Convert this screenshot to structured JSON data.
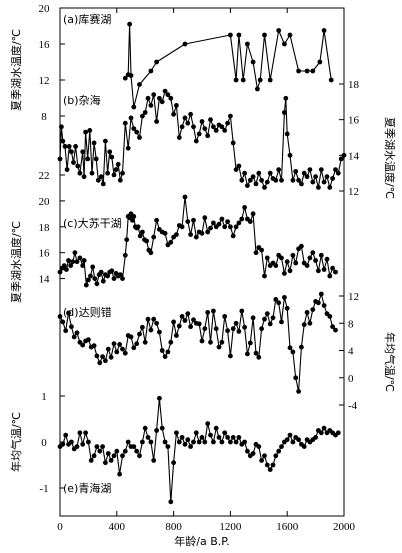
{
  "chart_data": {
    "type": "line",
    "x_axis": {
      "label": "年龄/a B.P.",
      "range": [
        0,
        2000
      ],
      "ticks": [
        0,
        400,
        800,
        1200,
        1600,
        2000
      ]
    },
    "left_axis_labels": [
      "夏季湖水温度/℃",
      "夏季湖水温度/℃",
      "年均气温/℃"
    ],
    "right_axis_labels": [
      "夏季湖水温度/℃",
      "年均气温/℃"
    ],
    "panels": [
      {
        "label": "(a)库赛湖",
        "axis_side": "left",
        "ylim": [
          8,
          20
        ],
        "ticks": [
          8,
          12,
          16,
          20
        ],
        "x": [
          460,
          480,
          490,
          500,
          520,
          560,
          640,
          680,
          880,
          1200,
          1240,
          1260,
          1290,
          1320,
          1360,
          1390,
          1410,
          1440,
          1480,
          1540,
          1580,
          1620,
          1680,
          1740,
          1780,
          1830,
          1860,
          1910
        ],
        "values": [
          12.2,
          12.6,
          18.2,
          12.5,
          9.0,
          11.5,
          13.0,
          14.0,
          16.0,
          17.0,
          12.0,
          17.0,
          12.0,
          16.0,
          14.0,
          11.0,
          12.0,
          17.0,
          12.0,
          17.5,
          16.0,
          17.0,
          13.0,
          13.0,
          13.0,
          14.0,
          17.5,
          12.0
        ]
      },
      {
        "label": "(b)杂海",
        "axis_side": "right",
        "ylim": [
          12,
          18
        ],
        "ticks": [
          12,
          14,
          16,
          18
        ],
        "x": [
          0,
          10,
          20,
          35,
          50,
          65,
          80,
          95,
          110,
          125,
          140,
          160,
          170,
          180,
          195,
          210,
          225,
          240,
          255,
          270,
          290,
          305,
          320,
          335,
          350,
          365,
          380,
          395,
          410,
          425,
          440,
          460,
          480,
          500,
          520,
          540,
          560,
          580,
          600,
          620,
          640,
          660,
          680,
          700,
          720,
          740,
          760,
          780,
          800,
          820,
          840,
          860,
          880,
          900,
          920,
          940,
          960,
          980,
          1000,
          1020,
          1040,
          1060,
          1080,
          1100,
          1120,
          1140,
          1160,
          1180,
          1200,
          1220,
          1240,
          1260,
          1280,
          1300,
          1320,
          1340,
          1360,
          1380,
          1400,
          1420,
          1440,
          1460,
          1480,
          1500,
          1520,
          1540,
          1560,
          1580,
          1590,
          1600,
          1620,
          1640,
          1660,
          1680,
          1700,
          1720,
          1740,
          1760,
          1780,
          1800,
          1820,
          1840,
          1860,
          1880,
          1900,
          1920,
          1940,
          1960,
          1980,
          2000
        ],
        "values": [
          13.8,
          15.6,
          14.8,
          14.5,
          13.2,
          14.5,
          14.2,
          13.6,
          14.5,
          13.4,
          13.0,
          14.2,
          12.8,
          15.3,
          13.8,
          15.4,
          13.0,
          14.7,
          13.8,
          12.6,
          12.8,
          12.4,
          14.8,
          13.0,
          14.2,
          13.9,
          12.9,
          13.2,
          13.5,
          12.6,
          13.0,
          15.8,
          14.4,
          16.1,
          15.5,
          15.3,
          15.0,
          16.2,
          16.4,
          17.2,
          16.8,
          17.4,
          15.9,
          17.2,
          17.0,
          17.6,
          17.4,
          17.2,
          16.3,
          16.8,
          15.0,
          15.6,
          16.1,
          15.8,
          16.3,
          15.6,
          14.8,
          15.2,
          15.9,
          15.5,
          15.1,
          16.0,
          15.6,
          15.4,
          15.7,
          15.6,
          15.4,
          15.8,
          16.2,
          14.7,
          13.2,
          13.4,
          12.6,
          13.0,
          12.3,
          12.6,
          12.8,
          12.4,
          13.0,
          12.6,
          12.2,
          12.5,
          13.0,
          12.7,
          12.6,
          13.2,
          12.6,
          16.4,
          17.2,
          15.2,
          14.0,
          12.6,
          13.1,
          12.6,
          12.4,
          13.0,
          12.8,
          13.2,
          12.5,
          12.8,
          12.2,
          13.2,
          12.5,
          12.8,
          12.2,
          12.7,
          13.2,
          13.0,
          13.8,
          14.0
        ]
      },
      {
        "label": "(c)大苏干湖",
        "axis_side": "left",
        "ylim": [
          12.5,
          22
        ],
        "ticks": [
          14,
          16,
          18,
          20,
          22
        ],
        "x": [
          0,
          15,
          30,
          45,
          60,
          75,
          90,
          105,
          120,
          140,
          160,
          170,
          185,
          200,
          215,
          230,
          245,
          260,
          275,
          290,
          305,
          320,
          335,
          350,
          365,
          380,
          395,
          410,
          425,
          440,
          460,
          470,
          480,
          490,
          500,
          510,
          520,
          530,
          540,
          550,
          565,
          580,
          595,
          610,
          625,
          640,
          660,
          680,
          700,
          720,
          740,
          760,
          780,
          800,
          820,
          840,
          860,
          880,
          900,
          920,
          940,
          960,
          980,
          1000,
          1020,
          1040,
          1060,
          1080,
          1100,
          1120,
          1140,
          1160,
          1180,
          1200,
          1220,
          1240,
          1260,
          1280,
          1300,
          1320,
          1340,
          1360,
          1380,
          1400,
          1420,
          1440,
          1460,
          1480,
          1500,
          1520,
          1540,
          1560,
          1580,
          1600,
          1620,
          1640,
          1660,
          1680,
          1700,
          1720,
          1740,
          1760,
          1780,
          1800,
          1820,
          1840,
          1860,
          1880,
          1900,
          1920,
          1940
        ],
        "values": [
          14.5,
          14.8,
          15.0,
          14.7,
          15.4,
          15.0,
          15.3,
          16.0,
          15.3,
          15.6,
          15.0,
          15.4,
          13.5,
          13.9,
          14.2,
          14.9,
          14.0,
          13.6,
          14.3,
          14.5,
          13.8,
          14.3,
          14.2,
          14.5,
          14.6,
          14.0,
          14.4,
          14.2,
          14.3,
          14.0,
          15.8,
          17.0,
          18.8,
          18.7,
          19.0,
          18.5,
          18.8,
          18.0,
          17.9,
          18.0,
          17.3,
          17.6,
          17.0,
          16.9,
          16.2,
          16.0,
          17.2,
          18.5,
          17.8,
          17.6,
          17.5,
          16.6,
          16.8,
          17.2,
          17.4,
          18.1,
          18.0,
          20.3,
          18.4,
          17.4,
          18.5,
          17.2,
          17.6,
          17.5,
          18.7,
          17.6,
          17.9,
          18.3,
          18.0,
          18.2,
          18.6,
          18.0,
          18.4,
          18.0,
          17.3,
          18.0,
          18.3,
          18.6,
          19.5,
          18.6,
          18.4,
          19.0,
          16.0,
          16.4,
          16.2,
          14.2,
          15.6,
          15.0,
          15.2,
          15.0,
          15.8,
          15.6,
          14.4,
          15.3,
          14.6,
          15.8,
          15.2,
          16.3,
          16.5,
          15.2,
          15.0,
          15.6,
          16.0,
          15.4,
          14.6,
          15.8,
          14.7,
          15.5,
          14.2,
          14.8,
          14.5
        ]
      },
      {
        "label": "(d)达则错",
        "axis_side": "right",
        "ylim": [
          -4,
          12
        ],
        "ticks": [
          -4,
          0,
          4,
          8,
          12
        ],
        "x": [
          0,
          20,
          40,
          60,
          80,
          100,
          120,
          140,
          160,
          180,
          200,
          220,
          240,
          260,
          280,
          300,
          320,
          340,
          360,
          380,
          400,
          420,
          440,
          460,
          480,
          500,
          520,
          540,
          560,
          580,
          600,
          620,
          640,
          660,
          680,
          700,
          720,
          740,
          760,
          780,
          800,
          820,
          840,
          860,
          880,
          900,
          920,
          940,
          960,
          980,
          1000,
          1020,
          1040,
          1060,
          1080,
          1100,
          1120,
          1140,
          1160,
          1180,
          1200,
          1220,
          1240,
          1260,
          1280,
          1300,
          1320,
          1340,
          1360,
          1380,
          1400,
          1420,
          1440,
          1460,
          1480,
          1500,
          1520,
          1540,
          1560,
          1580,
          1600,
          1620,
          1640,
          1660,
          1680,
          1700,
          1720,
          1740,
          1760,
          1780,
          1800,
          1820,
          1840,
          1860,
          1880,
          1900,
          1920,
          1940
        ],
        "values": [
          9.0,
          8.2,
          6.9,
          9.5,
          7.5,
          6.0,
          6.6,
          5.2,
          4.8,
          5.4,
          5.6,
          4.5,
          4.7,
          3.2,
          2.2,
          3.1,
          2.5,
          4.2,
          3.0,
          5.0,
          3.8,
          4.9,
          4.2,
          3.6,
          6.2,
          6.0,
          4.4,
          5.0,
          6.4,
          7.4,
          5.2,
          8.6,
          7.0,
          8.6,
          8.0,
          6.7,
          4.0,
          3.1,
          3.8,
          5.2,
          8.2,
          6.2,
          7.6,
          9.0,
          8.4,
          9.4,
          7.5,
          8.5,
          8.0,
          7.9,
          5.4,
          7.2,
          9.6,
          5.2,
          9.8,
          7.2,
          4.5,
          5.2,
          9.0,
          6.9,
          3.2,
          7.2,
          8.0,
          6.8,
          9.8,
          7.4,
          3.5,
          5.1,
          8.8,
          3.6,
          3.0,
          7.2,
          8.6,
          9.4,
          7.9,
          8.8,
          11.5,
          11.0,
          8.2,
          11.8,
          10.2,
          4.4,
          3.8,
          0.0,
          -2.0,
          4.5,
          7.8,
          9.6,
          8.0,
          10.0,
          11.2,
          11.0,
          12.3,
          10.6,
          9.4,
          9.0,
          7.5,
          7.0
        ]
      },
      {
        "label": "(e)青海湖",
        "axis_side": "left",
        "ylim": [
          -1.5,
          1.5
        ],
        "ticks": [
          -1,
          0,
          1
        ],
        "x": [
          0,
          20,
          40,
          60,
          80,
          100,
          120,
          140,
          160,
          180,
          200,
          220,
          240,
          260,
          280,
          300,
          320,
          340,
          360,
          380,
          400,
          420,
          440,
          460,
          480,
          500,
          520,
          540,
          560,
          580,
          600,
          620,
          640,
          660,
          680,
          700,
          720,
          740,
          760,
          780,
          800,
          820,
          840,
          860,
          880,
          900,
          920,
          940,
          960,
          980,
          1000,
          1020,
          1040,
          1060,
          1080,
          1100,
          1120,
          1140,
          1160,
          1180,
          1200,
          1220,
          1240,
          1260,
          1280,
          1300,
          1320,
          1340,
          1360,
          1380,
          1400,
          1420,
          1440,
          1460,
          1480,
          1500,
          1520,
          1540,
          1560,
          1580,
          1600,
          1620,
          1640,
          1660,
          1680,
          1700,
          1720,
          1740,
          1760,
          1780,
          1800,
          1820,
          1840,
          1860,
          1880,
          1900,
          1920,
          1940,
          1960
        ],
        "values": [
          -0.1,
          -0.05,
          0.15,
          -0.05,
          0.0,
          -0.15,
          -0.1,
          0.2,
          -0.05,
          0.2,
          0.0,
          -0.4,
          -0.3,
          -0.1,
          -0.2,
          -0.1,
          -0.45,
          -0.25,
          -0.4,
          -0.3,
          -0.2,
          -0.7,
          -0.3,
          -0.2,
          0.0,
          -0.1,
          -0.1,
          -0.2,
          -0.3,
          0.0,
          0.3,
          0.1,
          0.0,
          -0.4,
          0.25,
          0.95,
          0.3,
          0.0,
          -0.1,
          -1.3,
          -0.45,
          0.2,
          0.0,
          0.1,
          -0.05,
          0.05,
          -0.1,
          0.0,
          0.2,
          0.0,
          0.1,
          0.0,
          0.4,
          0.15,
          0.0,
          0.3,
          0.1,
          0.0,
          0.2,
          0.1,
          0.0,
          0.1,
          0.0,
          0.1,
          -0.05,
          0.0,
          -0.2,
          -0.3,
          -0.25,
          -0.05,
          -0.1,
          -0.4,
          -0.3,
          -0.5,
          -0.6,
          -0.5,
          -0.3,
          -0.2,
          -0.1,
          0.0,
          0.05,
          0.15,
          0.0,
          0.1,
          0.05,
          -0.05,
          -0.1,
          0.05,
          0.0,
          0.05,
          0.1,
          0.25,
          0.2,
          0.3,
          0.2,
          0.25,
          0.2,
          0.15,
          0.2
        ]
      }
    ]
  }
}
